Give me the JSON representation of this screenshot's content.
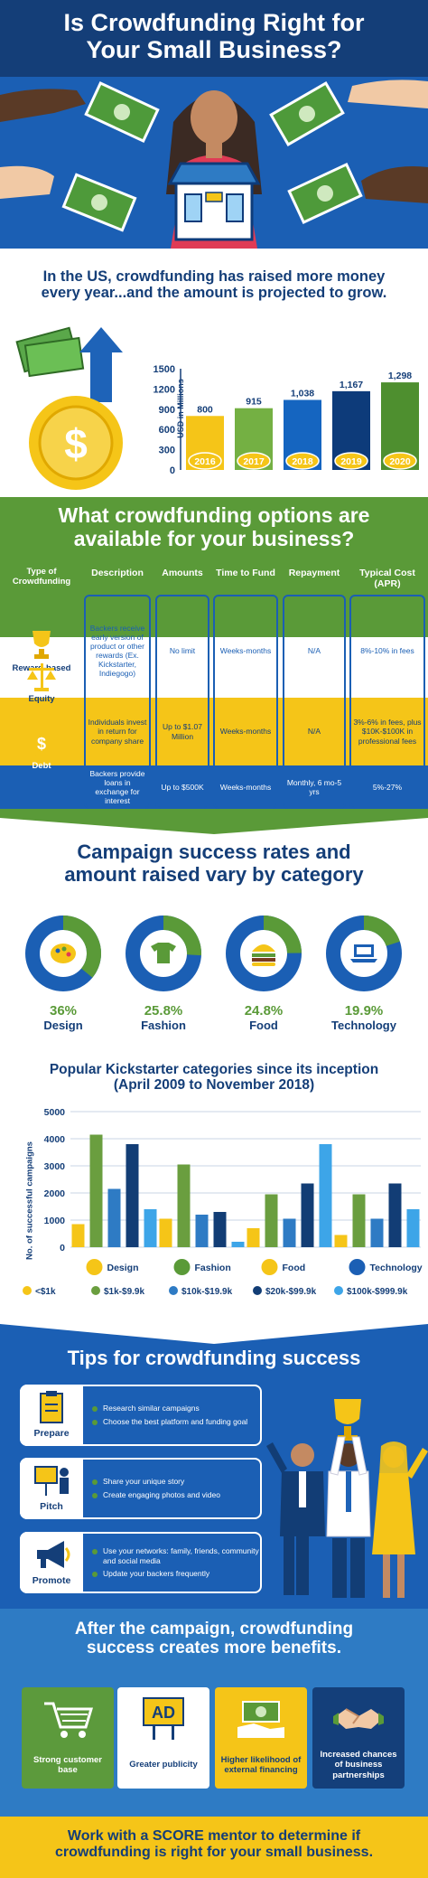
{
  "header": {
    "title_line1": "Is Crowdfunding Right for",
    "title_line2": "Your Small Business?"
  },
  "growth": {
    "heading_line1": "In the US, crowdfunding has raised more money",
    "heading_line2": "every year...and the amount is projected to grow.",
    "y_axis_label": "USD in Millions",
    "chart_data": {
      "type": "bar",
      "categories": [
        "2016",
        "2017",
        "2018",
        "2019",
        "2020"
      ],
      "values": [
        800,
        915,
        1038,
        1167,
        1298
      ],
      "value_labels": [
        "800",
        "915",
        "1,038",
        "1,167",
        "1,298"
      ],
      "ylabel": "USD in Millions",
      "ylim": [
        0,
        1500
      ],
      "yticks": [
        "0",
        "300",
        "600",
        "900",
        "1200",
        "1500"
      ],
      "colors": [
        "#f5c518",
        "#74b043",
        "#1565c0",
        "#0d3b7a",
        "#4e8f2f"
      ]
    }
  },
  "options": {
    "heading_line1": "What crowdfunding options are",
    "heading_line2": "available for your business?",
    "columns": [
      "Type of Crowdfunding",
      "Description",
      "Amounts",
      "Time to Fund",
      "Repayment",
      "Typical Cost (APR)"
    ],
    "rows": [
      {
        "type": "Reward-based",
        "description": "Backers receive early version of product or other rewards (Ex. Kickstarter, Indiegogo)",
        "amounts": "No limit",
        "time": "Weeks-months",
        "repayment": "N/A",
        "cost": "8%-10% in fees"
      },
      {
        "type": "Equity",
        "description": "Individuals invest in return for company share",
        "amounts": "Up to $1.07 Million",
        "time": "Weeks-months",
        "repayment": "N/A",
        "cost": "3%-6% in fees, plus $10K-$100K in professional fees"
      },
      {
        "type": "Debt",
        "description": "Backers provide loans in exchange for interest",
        "amounts": "Up to $500K",
        "time": "Weeks-months",
        "repayment": "Monthly, 6 mo-5 yrs",
        "cost": "5%-27%"
      }
    ]
  },
  "success": {
    "heading_line1": "Campaign success rates and",
    "heading_line2": "amount raised vary by category",
    "items": [
      {
        "pct": "36%",
        "label": "Design",
        "value": 36,
        "icon": "palette-icon"
      },
      {
        "pct": "25.8%",
        "label": "Fashion",
        "value": 25.8,
        "icon": "tshirt-icon"
      },
      {
        "pct": "24.8%",
        "label": "Food",
        "value": 24.8,
        "icon": "burger-icon"
      },
      {
        "pct": "19.9%",
        "label": "Technology",
        "value": 19.9,
        "icon": "laptop-icon"
      }
    ]
  },
  "kickstarter": {
    "title_line1": "Popular Kickstarter categories since its inception",
    "title_line2": "(April 2009 to November 2018)",
    "chart_data": {
      "type": "bar",
      "ylabel": "No. of successful campaigns",
      "ylim": [
        0,
        5000
      ],
      "yticks": [
        "0",
        "1000",
        "2000",
        "3000",
        "4000",
        "5000"
      ],
      "categories": [
        "Design",
        "Fashion",
        "Food",
        "Technology"
      ],
      "series": [
        {
          "name": "<$1k",
          "color": "#f5c518",
          "values": [
            850,
            1050,
            700,
            450
          ]
        },
        {
          "name": "$1k-$9.9k",
          "color": "#6a9e3f",
          "values": [
            4150,
            3050,
            1950,
            1950
          ]
        },
        {
          "name": "$10k-$19.9k",
          "color": "#2e7bc4",
          "values": [
            2150,
            1200,
            1050,
            1050
          ]
        },
        {
          "name": "$20k-$99.9k",
          "color": "#123d75",
          "values": [
            3800,
            1300,
            2350,
            2350
          ]
        },
        {
          "name": "$100k-$999.9k",
          "color": "#3da5e8",
          "values": [
            1400,
            200,
            3800,
            1400
          ]
        }
      ]
    }
  },
  "tips": {
    "heading": "Tips for crowdfunding success",
    "items": [
      {
        "label": "Prepare",
        "icon": "clipboard-icon",
        "bullets": [
          "Research similar campaigns",
          "Choose the best platform and funding goal"
        ]
      },
      {
        "label": "Pitch",
        "icon": "presentation-icon",
        "bullets": [
          "Share your unique story",
          "Create engaging photos and video"
        ]
      },
      {
        "label": "Promote",
        "icon": "megaphone-icon",
        "bullets": [
          "Use your networks: family, friends, community and social media",
          "Update your backers frequently"
        ]
      }
    ]
  },
  "after": {
    "heading_line1": "After the campaign, crowdfunding",
    "heading_line2": "success creates more benefits.",
    "cards": [
      {
        "label": "Strong customer base",
        "icon": "cart-icon",
        "bg": "#5c9a3c"
      },
      {
        "label": "Greater publicity",
        "icon": "ad-icon",
        "bg": "#ffffff",
        "icon_text": "AD"
      },
      {
        "label": "Higher likelihood of external financing",
        "icon": "money-hand-icon",
        "bg": "#f5c518"
      },
      {
        "label": "Increased chances of business partnerships",
        "icon": "handshake-icon",
        "bg": "#143f7a"
      }
    ]
  },
  "footer": {
    "line1": "Work with a SCORE mentor to determine if",
    "line2": "crowdfunding is right for your small business."
  }
}
